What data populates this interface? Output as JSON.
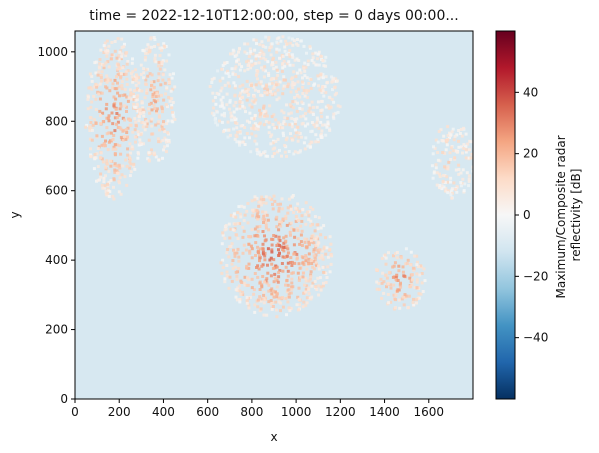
{
  "chart_data": {
    "type": "heatmap",
    "title": "time = 2022-12-10T12:00:00, step = 0 days 00:00...",
    "xlabel": "x",
    "ylabel": "y",
    "xlim": [
      0,
      1800
    ],
    "ylim": [
      0,
      1060
    ],
    "xticks": [
      0,
      200,
      400,
      600,
      800,
      1000,
      1200,
      1400,
      1600
    ],
    "yticks": [
      0,
      200,
      400,
      600,
      800,
      1000
    ],
    "grid": false,
    "background_value": -20,
    "colorbar": {
      "label_lines": [
        "Maximum/Composite radar",
        "reflectivity [dB]"
      ],
      "range": [
        -60,
        60
      ],
      "ticks": [
        -40,
        -20,
        0,
        20,
        40
      ],
      "colormap": "RdBu_r"
    },
    "reflectivity_features": [
      {
        "x": [
          40,
          300
        ],
        "y": [
          580,
          1050
        ],
        "dB": 25
      },
      {
        "x": [
          260,
          450
        ],
        "y": [
          680,
          1050
        ],
        "dB": 18
      },
      {
        "x": [
          600,
          1200
        ],
        "y": [
          700,
          1050
        ],
        "dB": 10
      },
      {
        "x": [
          640,
          1160
        ],
        "y": [
          240,
          600
        ],
        "dB": 30
      },
      {
        "x": [
          1350,
          1580
        ],
        "y": [
          260,
          440
        ],
        "dB": 25
      },
      {
        "x": [
          1600,
          1800
        ],
        "y": [
          580,
          800
        ],
        "dB": 10
      }
    ]
  }
}
